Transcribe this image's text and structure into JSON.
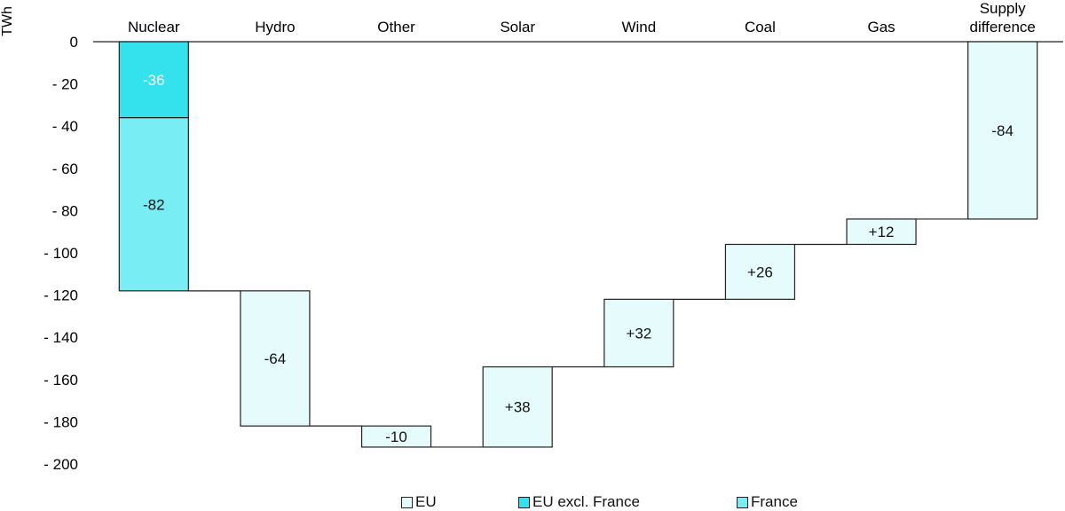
{
  "chart_data": {
    "type": "waterfall",
    "ylabel": "TWh",
    "ylim": [
      -200,
      0
    ],
    "yticks": [
      0,
      -20,
      -40,
      -60,
      -80,
      -100,
      -120,
      -140,
      -160,
      -180,
      -200
    ],
    "ytick_labels": [
      "0",
      "- 20",
      "- 40",
      "- 60",
      "- 80",
      "- 100",
      "- 120",
      "- 140",
      "- 160",
      "- 180",
      "- 200"
    ],
    "categories": [
      "Nuclear",
      "Hydro",
      "Other",
      "Solar",
      "Wind",
      "Coal",
      "Gas",
      "Supply difference"
    ],
    "bars": [
      {
        "category": "Nuclear",
        "segments": [
          {
            "series": "France",
            "from": 0,
            "to": -36,
            "label": "-36"
          },
          {
            "series": "EU excl. France",
            "from": -36,
            "to": -118,
            "label": "-82"
          }
        ]
      },
      {
        "category": "Hydro",
        "segments": [
          {
            "series": "EU",
            "from": -118,
            "to": -182,
            "label": "-64"
          }
        ]
      },
      {
        "category": "Other",
        "segments": [
          {
            "series": "EU",
            "from": -182,
            "to": -192,
            "label": "-10"
          }
        ]
      },
      {
        "category": "Solar",
        "segments": [
          {
            "series": "EU",
            "from": -192,
            "to": -154,
            "label": "+38"
          }
        ]
      },
      {
        "category": "Wind",
        "segments": [
          {
            "series": "EU",
            "from": -154,
            "to": -122,
            "label": "+32"
          }
        ]
      },
      {
        "category": "Coal",
        "segments": [
          {
            "series": "EU",
            "from": -122,
            "to": -96,
            "label": "+26"
          }
        ]
      },
      {
        "category": "Gas",
        "segments": [
          {
            "series": "EU",
            "from": -96,
            "to": -84,
            "label": "+12"
          }
        ]
      },
      {
        "category": "Supply difference",
        "segments": [
          {
            "series": "EU",
            "from": 0,
            "to": -84,
            "label": "-84"
          }
        ]
      }
    ],
    "legend": [
      {
        "name": "EU",
        "color": "#e6fbfb"
      },
      {
        "name": "EU excl. France",
        "color": "#33e2ec"
      },
      {
        "name": "France",
        "color": "#78eef4"
      }
    ],
    "series_colors": {
      "EU": "#e6fbfb",
      "EU excl. France": "#33e2ec",
      "France": "#78eef4"
    },
    "segment_colors": {
      "Nuclear": [
        "#33e2ec",
        "#78eef4"
      ]
    },
    "legend_position": "bottom",
    "grid": false
  }
}
